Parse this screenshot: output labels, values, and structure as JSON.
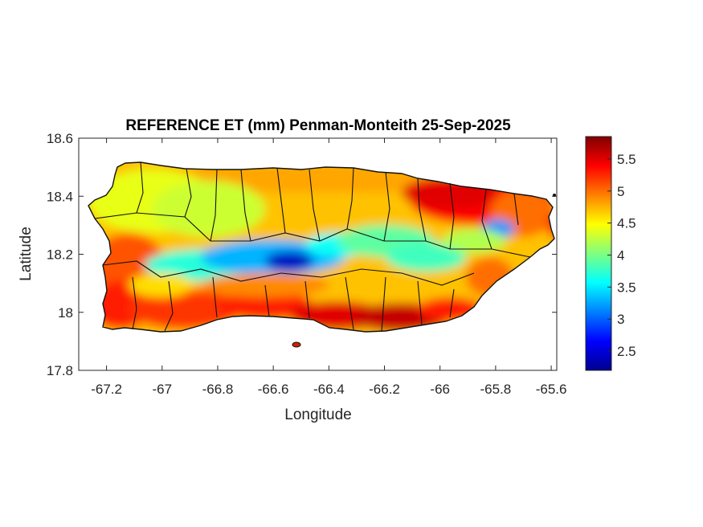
{
  "title": "REFERENCE ET (mm) Penman-Monteith 25-Sep-2025",
  "xlabel": "Longitude",
  "ylabel": "Latitude",
  "xlim": [
    -67.3,
    -65.58
  ],
  "ylim": [
    17.8,
    18.6
  ],
  "x_ticks": [
    "-67.2",
    "-67",
    "-66.8",
    "-66.6",
    "-66.4",
    "-66.2",
    "-66",
    "-65.8",
    "-65.6"
  ],
  "y_ticks": [
    "18.6",
    "18.4",
    "18.2",
    "18",
    "17.8"
  ],
  "colorbar": {
    "colormap": "jet",
    "range": [
      2.2,
      5.85
    ],
    "ticks": [
      "5.5",
      "5",
      "4.5",
      "4",
      "3.5",
      "3",
      "2.5"
    ]
  },
  "chart_data": {
    "type": "heatmap",
    "title": "REFERENCE ET (mm) Penman-Monteith 25-Sep-2025",
    "xlabel": "Longitude",
    "ylabel": "Latitude",
    "xlim": [
      -67.3,
      -65.58
    ],
    "ylim": [
      17.8,
      18.6
    ],
    "colorbar_range": [
      2.2,
      5.85
    ],
    "region": "Puerto Rico",
    "municipality_boundaries": true,
    "approx_values": [
      {
        "area": "south coast",
        "value": 5.6
      },
      {
        "area": "southwest coast",
        "value": 5.2
      },
      {
        "area": "northeast",
        "value": 5.4
      },
      {
        "area": "west interior",
        "value": 4.4
      },
      {
        "area": "north coast",
        "value": 4.8
      },
      {
        "area": "central mountains",
        "value": 2.5
      },
      {
        "area": "east-central interior",
        "value": 3.6
      }
    ]
  }
}
